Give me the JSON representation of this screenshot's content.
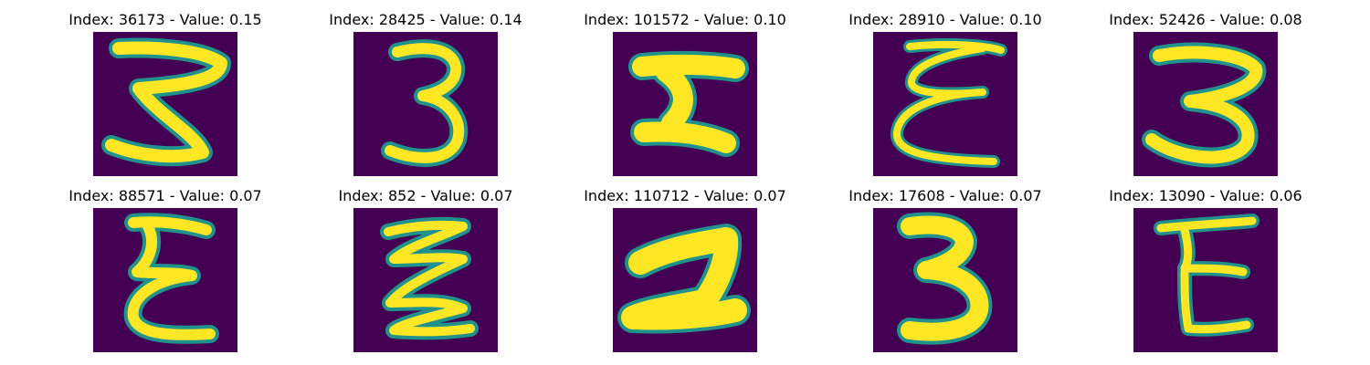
{
  "colors": {
    "background": "#440154",
    "stroke_edge": "#21918c",
    "stroke_mid": "#5ec962",
    "stroke_core": "#fde725"
  },
  "panels": [
    {
      "title": "Index: 36173 - Value: 0.15"
    },
    {
      "title": "Index: 28425 - Value: 0.14"
    },
    {
      "title": "Index: 101572 - Value: 0.10"
    },
    {
      "title": "Index: 28910 - Value: 0.10"
    },
    {
      "title": "Index: 52426 - Value: 0.08"
    },
    {
      "title": "Index: 88571 - Value: 0.07"
    },
    {
      "title": "Index: 852 - Value: 0.07"
    },
    {
      "title": "Index: 110712 - Value: 0.07"
    },
    {
      "title": "Index: 17608 - Value: 0.07"
    },
    {
      "title": "Index: 13090 - Value: 0.06"
    }
  ]
}
